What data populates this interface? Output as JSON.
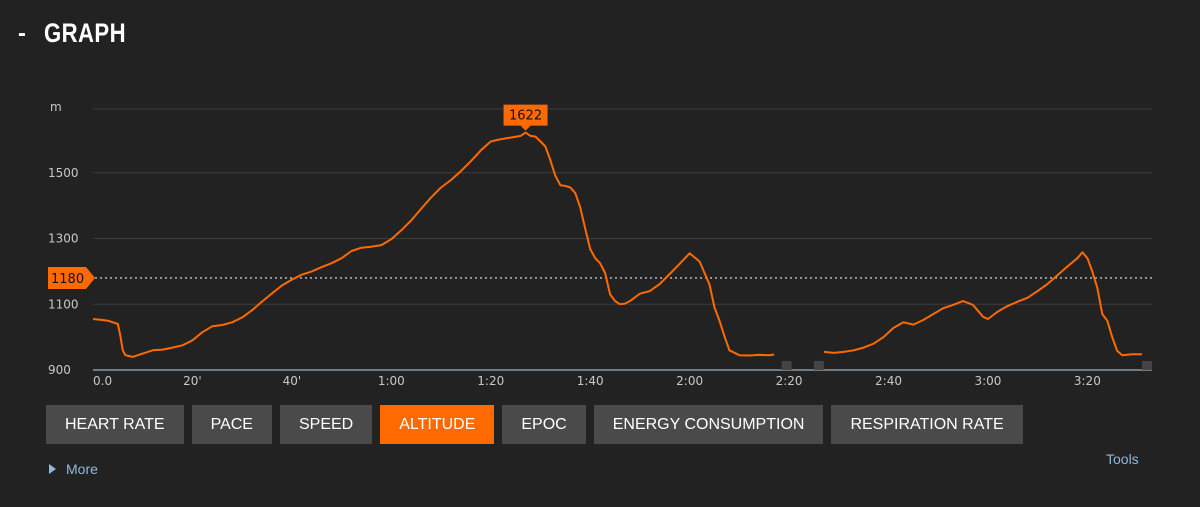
{
  "header": {
    "collapse_symbol": "-",
    "title": "GRAPH"
  },
  "colors": {
    "line": "#ff6a00",
    "marker": "#ff6a00",
    "button_active": "#ff6a00",
    "button": "#4a4a4a",
    "grid": "#3c3c3c",
    "background": "#222222",
    "link": "#8fb8dc"
  },
  "chart_data": {
    "type": "line",
    "title": "",
    "ylabel": "m",
    "xlabel": "",
    "x_unit": "minutes",
    "xlim": [
      0,
      213
    ],
    "ylim": [
      900,
      1700
    ],
    "y_ticks": [
      900,
      1100,
      1300,
      1500
    ],
    "x_ticks": [
      {
        "value": 0,
        "label": "0.0"
      },
      {
        "value": 20,
        "label": "20'"
      },
      {
        "value": 40,
        "label": "40'"
      },
      {
        "value": 60,
        "label": "1:00"
      },
      {
        "value": 80,
        "label": "1:20"
      },
      {
        "value": 100,
        "label": "1:40"
      },
      {
        "value": 120,
        "label": "2:00"
      },
      {
        "value": 140,
        "label": "2:20"
      },
      {
        "value": 160,
        "label": "2:40"
      },
      {
        "value": 180,
        "label": "3:00"
      },
      {
        "value": 200,
        "label": "3:20"
      }
    ],
    "grid": true,
    "reference_line": {
      "value": 1180,
      "label": "1180",
      "style": "dotted"
    },
    "max_marker": {
      "x": 87,
      "y": 1622,
      "label": "1622"
    },
    "gaps": [
      {
        "from": 138.5,
        "to": 147
      },
      {
        "from": 211,
        "to": 213
      }
    ],
    "series": [
      {
        "name": "",
        "segments": [
          [
            [
              0,
              1055
            ],
            [
              2,
              1052
            ],
            [
              3,
              1050
            ],
            [
              4,
              1045
            ],
            [
              5,
              1040
            ],
            [
              5.5,
              1005
            ],
            [
              6,
              960
            ],
            [
              6.5,
              945
            ],
            [
              8,
              940
            ],
            [
              10,
              950
            ],
            [
              12,
              960
            ],
            [
              14,
              962
            ],
            [
              16,
              968
            ],
            [
              18,
              975
            ],
            [
              20,
              990
            ],
            [
              22,
              1015
            ],
            [
              24,
              1033
            ],
            [
              26,
              1037
            ],
            [
              28,
              1045
            ],
            [
              30,
              1060
            ],
            [
              32,
              1082
            ],
            [
              34,
              1108
            ],
            [
              36,
              1133
            ],
            [
              38,
              1157
            ],
            [
              40,
              1175
            ],
            [
              42,
              1190
            ],
            [
              44,
              1200
            ],
            [
              46,
              1213
            ],
            [
              48,
              1225
            ],
            [
              50,
              1240
            ],
            [
              52,
              1262
            ],
            [
              54,
              1272
            ],
            [
              56,
              1275
            ],
            [
              58,
              1280
            ],
            [
              60,
              1298
            ],
            [
              62,
              1325
            ],
            [
              64,
              1355
            ],
            [
              66,
              1390
            ],
            [
              68,
              1425
            ],
            [
              70,
              1455
            ],
            [
              72,
              1478
            ],
            [
              74,
              1505
            ],
            [
              76,
              1535
            ],
            [
              78,
              1568
            ],
            [
              80,
              1595
            ],
            [
              82,
              1602
            ],
            [
              84,
              1607
            ],
            [
              86,
              1612
            ],
            [
              87,
              1622
            ],
            [
              88,
              1612
            ],
            [
              89,
              1610
            ],
            [
              90,
              1595
            ],
            [
              91,
              1580
            ],
            [
              92,
              1538
            ],
            [
              93,
              1490
            ],
            [
              94,
              1462
            ],
            [
              95,
              1460
            ],
            [
              96,
              1455
            ],
            [
              97,
              1438
            ],
            [
              98,
              1395
            ],
            [
              99,
              1330
            ],
            [
              100,
              1268
            ],
            [
              101,
              1240
            ],
            [
              102,
              1225
            ],
            [
              103,
              1195
            ],
            [
              104,
              1130
            ],
            [
              105,
              1110
            ],
            [
              106,
              1100
            ],
            [
              107,
              1102
            ],
            [
              108,
              1110
            ],
            [
              110,
              1132
            ],
            [
              112,
              1140
            ],
            [
              114,
              1162
            ],
            [
              116,
              1192
            ],
            [
              118,
              1223
            ],
            [
              120,
              1255
            ],
            [
              122,
              1230
            ],
            [
              124,
              1160
            ],
            [
              125,
              1090
            ],
            [
              126,
              1050
            ],
            [
              127,
              1003
            ],
            [
              128,
              960
            ],
            [
              130,
              945
            ],
            [
              132,
              944
            ],
            [
              134,
              946
            ],
            [
              136,
              945
            ],
            [
              137,
              947
            ]
          ],
          [
            [
              147,
              955
            ],
            [
              149,
              952
            ],
            [
              151,
              955
            ],
            [
              153,
              960
            ],
            [
              155,
              968
            ],
            [
              157,
              980
            ],
            [
              159,
              1000
            ],
            [
              161,
              1028
            ],
            [
              163,
              1045
            ],
            [
              165,
              1038
            ],
            [
              167,
              1052
            ],
            [
              169,
              1070
            ],
            [
              171,
              1088
            ],
            [
              173,
              1098
            ],
            [
              175,
              1110
            ],
            [
              177,
              1098
            ],
            [
              179,
              1062
            ],
            [
              180,
              1055
            ],
            [
              182,
              1078
            ],
            [
              184,
              1095
            ],
            [
              186,
              1108
            ],
            [
              188,
              1120
            ],
            [
              190,
              1140
            ],
            [
              192,
              1162
            ],
            [
              194,
              1188
            ],
            [
              196,
              1215
            ],
            [
              198,
              1240
            ],
            [
              199,
              1258
            ],
            [
              200,
              1240
            ],
            [
              201,
              1200
            ],
            [
              202,
              1150
            ],
            [
              203,
              1070
            ],
            [
              204,
              1050
            ],
            [
              205,
              1000
            ],
            [
              206,
              958
            ],
            [
              207,
              945
            ],
            [
              209,
              948
            ],
            [
              211,
              948
            ]
          ]
        ]
      }
    ]
  },
  "tabs": [
    {
      "label": "HEART RATE",
      "active": false
    },
    {
      "label": "PACE",
      "active": false
    },
    {
      "label": "SPEED",
      "active": false
    },
    {
      "label": "ALTITUDE",
      "active": true
    },
    {
      "label": "EPOC",
      "active": false
    },
    {
      "label": "ENERGY CONSUMPTION",
      "active": false
    },
    {
      "label": "RESPIRATION RATE",
      "active": false
    }
  ],
  "links": {
    "more": "More",
    "tools": "Tools"
  }
}
